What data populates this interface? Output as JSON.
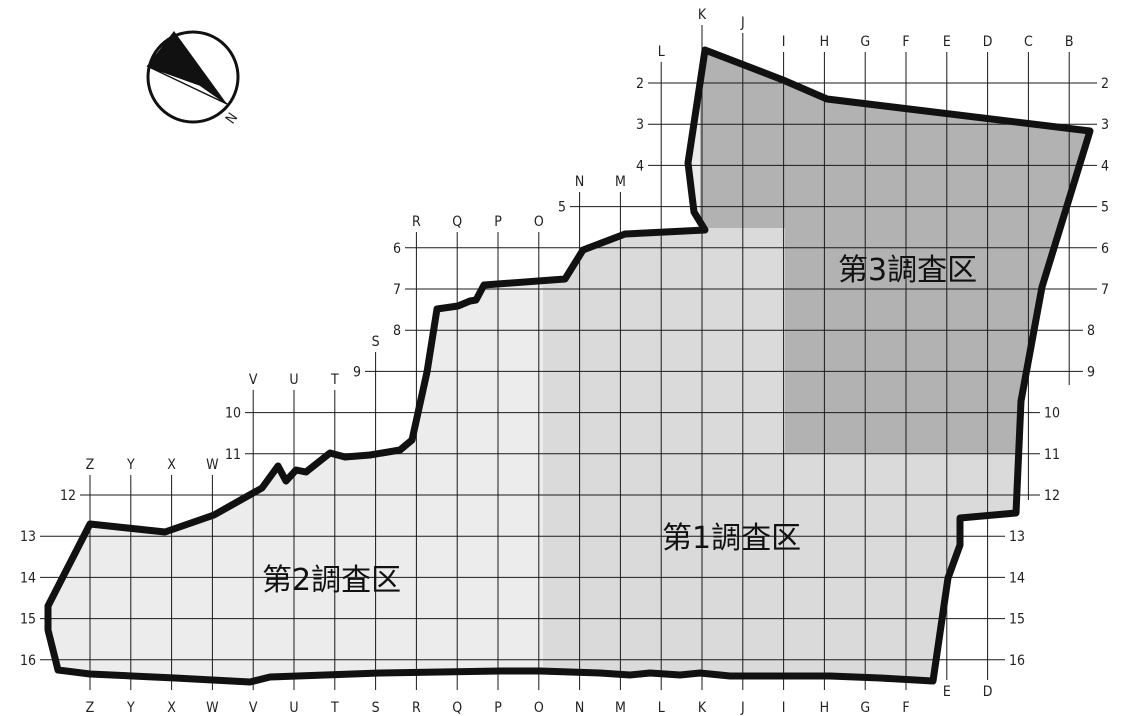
{
  "colors": {
    "area2_fill": "#ececec",
    "area1_fill": "#dadada",
    "area3_fill": "#b2b2b2",
    "grid": "#1a1a1a",
    "outline": "#111111"
  },
  "compass": {
    "icon": "north-arrow-icon",
    "label": "N"
  },
  "columns": [
    "Z",
    "Y",
    "X",
    "W",
    "V",
    "U",
    "T",
    "S",
    "R",
    "Q",
    "P",
    "O",
    "N",
    "M",
    "L",
    "K",
    "J",
    "I",
    "H",
    "G",
    "F",
    "E",
    "D",
    "C",
    "B"
  ],
  "rows": [
    "2",
    "3",
    "4",
    "5",
    "6",
    "7",
    "8",
    "9",
    "10",
    "11",
    "12",
    "13",
    "14",
    "15",
    "16"
  ],
  "areas": [
    {
      "id": "area-2",
      "label": "第2調査区"
    },
    {
      "id": "area-1",
      "label": "第1調査区"
    },
    {
      "id": "area-3",
      "label": "第3調査区"
    }
  ]
}
